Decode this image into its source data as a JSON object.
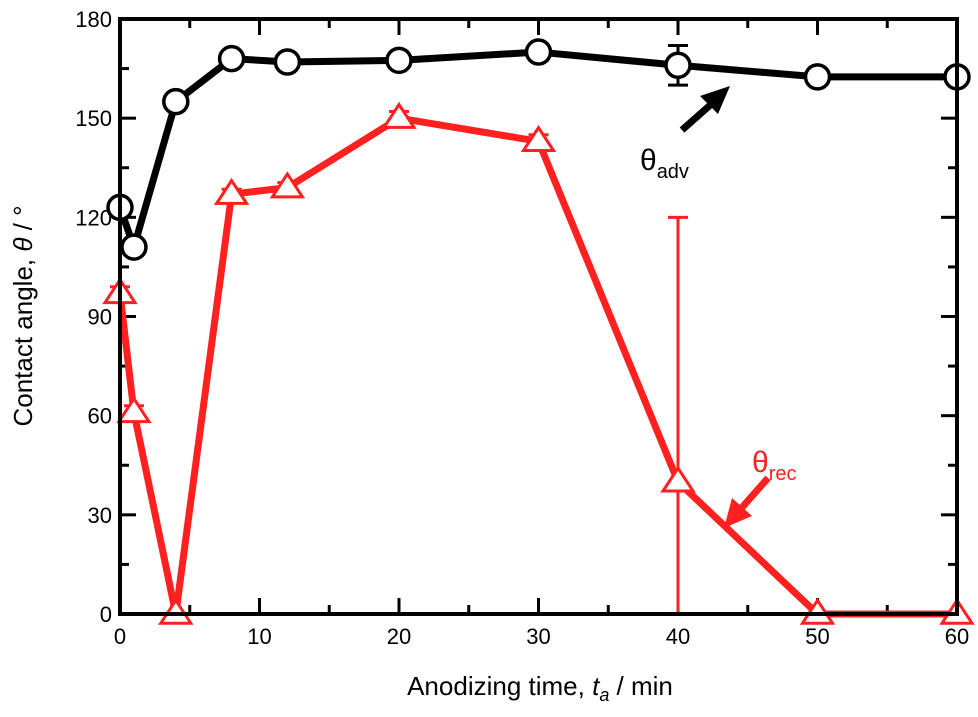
{
  "chart_data": {
    "type": "line",
    "title": "",
    "xlabel": "Anodizing time, t_a / min",
    "xlabel_parts": {
      "pre": "Anodizing time, ",
      "var": "t",
      "sub": "a",
      "post": " / min"
    },
    "ylabel": "Contact angle, θ / °",
    "ylabel_parts": {
      "pre": "Contact angle, ",
      "var": "θ",
      "post": " / °"
    },
    "xlim": [
      0,
      60
    ],
    "ylim": [
      0,
      180
    ],
    "xticks": [
      0,
      10,
      20,
      30,
      40,
      50,
      60
    ],
    "yticks": [
      0,
      30,
      60,
      90,
      120,
      150,
      180
    ],
    "grid": false,
    "series": [
      {
        "name": "θadv",
        "label_main": "θ",
        "label_sub": "adv",
        "color": "#000000",
        "marker": "circle",
        "x": [
          0,
          1,
          4,
          8,
          12,
          20,
          30,
          40,
          50,
          60
        ],
        "y": [
          123,
          111,
          155,
          168,
          167,
          167.5,
          170,
          166,
          162.5,
          162.5
        ],
        "error": [
          0,
          0,
          1,
          0,
          0,
          0,
          0,
          6,
          1.5,
          1.5
        ]
      },
      {
        "name": "θrec",
        "label_main": "θ",
        "label_sub": "rec",
        "color": "#ff2020",
        "marker": "triangle",
        "x": [
          0,
          1,
          4,
          8,
          12,
          20,
          30,
          40,
          50,
          60
        ],
        "y": [
          97,
          61,
          0,
          127,
          129,
          150,
          143,
          40,
          0,
          0
        ],
        "error": [
          2,
          2,
          0,
          1.5,
          1.5,
          2,
          2,
          80,
          0,
          0
        ]
      }
    ]
  }
}
